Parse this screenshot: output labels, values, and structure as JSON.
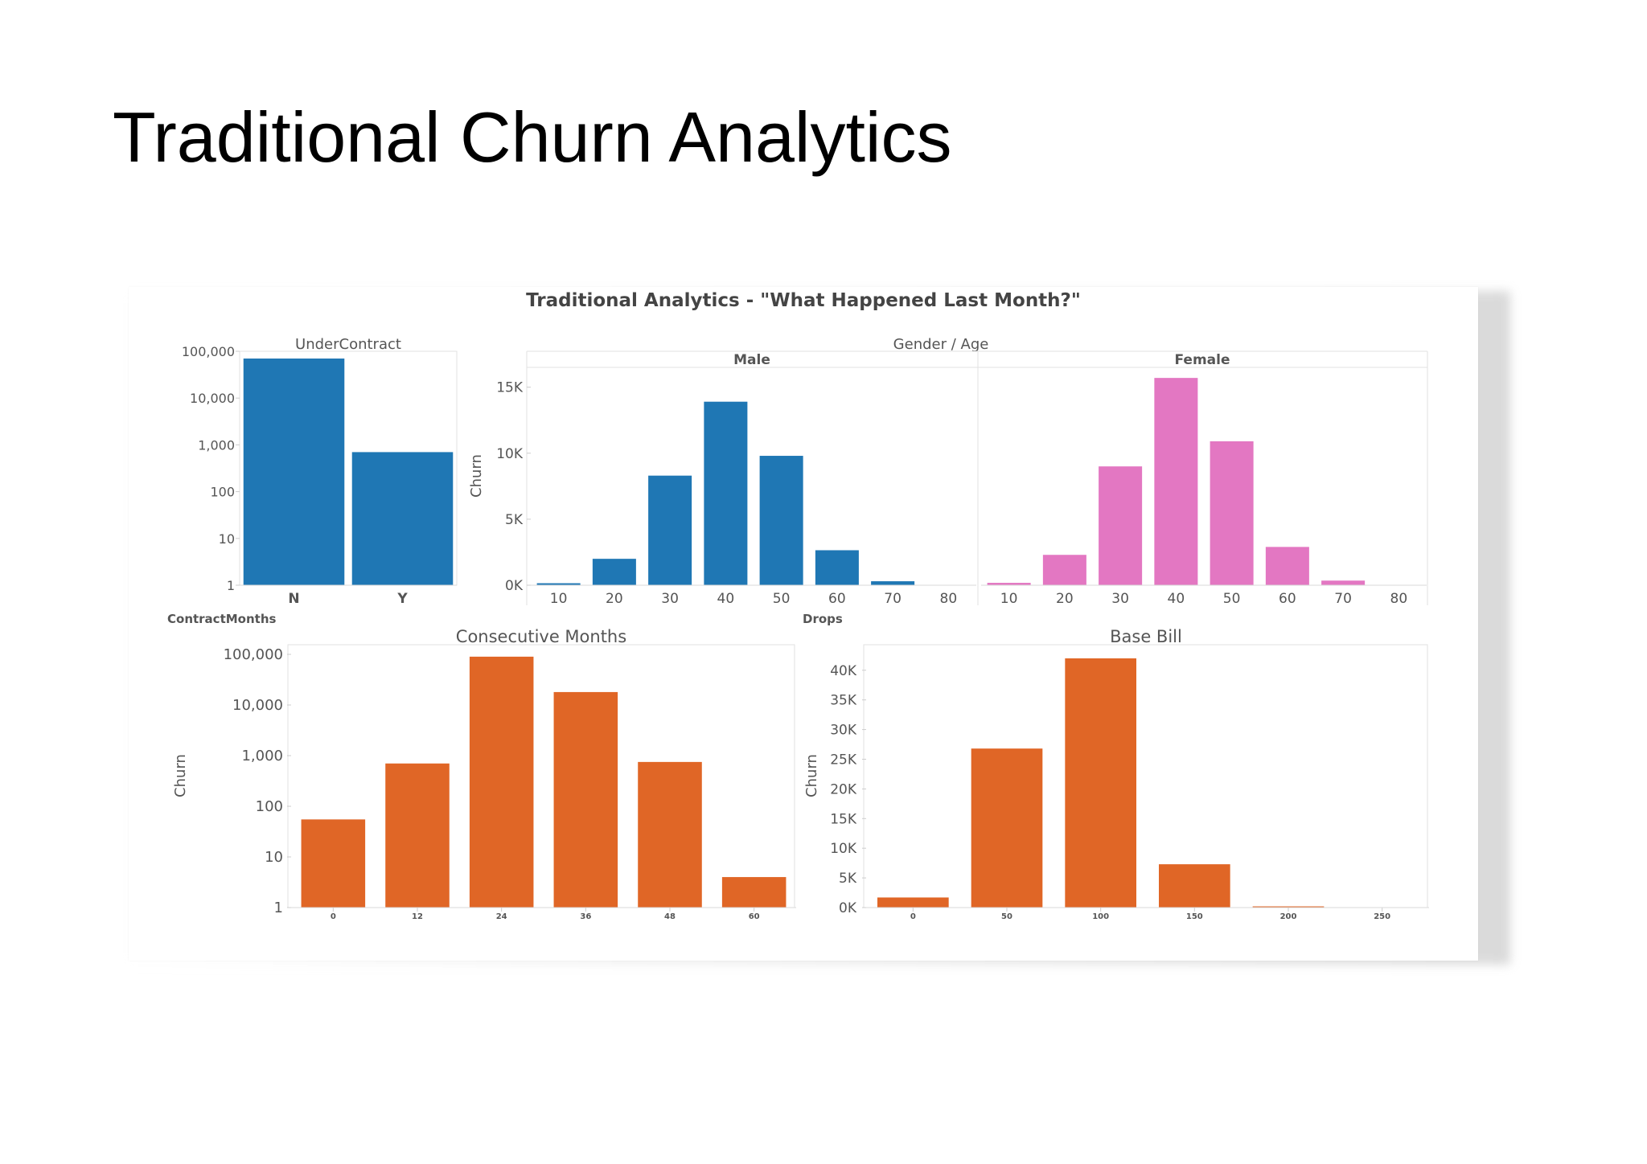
{
  "slide": {
    "title": "Traditional Churn Analytics"
  },
  "dashboard": {
    "title": "Traditional Analytics - \"What Happened Last Month?\""
  },
  "labels": {
    "gender_age": "Gender  /  Age",
    "contract_months": "ContractMonths",
    "drops": "Drops"
  },
  "colors": {
    "blue": "#1f77b4",
    "pink": "#e377c2",
    "orange": "#e06626"
  },
  "chart_data": [
    {
      "id": "under_contract",
      "type": "bar",
      "title": "UnderContract",
      "scale": "log",
      "ylim": [
        1,
        100000
      ],
      "yticks": [
        "1",
        "10",
        "100",
        "1,000",
        "10,000",
        "100,000"
      ],
      "categories": [
        "N",
        "Y"
      ],
      "values": [
        70000,
        700
      ],
      "color": "blue"
    },
    {
      "id": "gender_age_male",
      "type": "bar",
      "title": "Male",
      "ylabel": "Churn",
      "ylim": [
        0,
        16500
      ],
      "yticks": [
        "0K",
        "5K",
        "10K",
        "15K"
      ],
      "categories": [
        "10",
        "20",
        "30",
        "40",
        "50",
        "60",
        "70",
        "80"
      ],
      "values": [
        150,
        2000,
        8300,
        13900,
        9800,
        2650,
        300,
        0
      ],
      "color": "blue"
    },
    {
      "id": "gender_age_female",
      "type": "bar",
      "title": "Female",
      "ylim": [
        0,
        16500
      ],
      "categories": [
        "10",
        "20",
        "30",
        "40",
        "50",
        "60",
        "70",
        "80"
      ],
      "values": [
        180,
        2300,
        9000,
        15700,
        10900,
        2900,
        350,
        0
      ],
      "color": "pink"
    },
    {
      "id": "consecutive_months",
      "type": "bar",
      "title": "Consecutive Months",
      "ylabel": "Churn",
      "scale": "log",
      "ylim": [
        1,
        100000
      ],
      "yticks": [
        "1",
        "10",
        "100",
        "1,000",
        "10,000",
        "100,000"
      ],
      "categories": [
        "0",
        "12",
        "24",
        "36",
        "48",
        "60"
      ],
      "values": [
        55,
        700,
        90000,
        18000,
        750,
        4
      ],
      "color": "orange"
    },
    {
      "id": "base_bill",
      "type": "bar",
      "title": "Base Bill",
      "ylabel": "Churn",
      "ylim": [
        0,
        42000
      ],
      "yticks": [
        "0K",
        "5K",
        "10K",
        "15K",
        "20K",
        "25K",
        "30K",
        "35K",
        "40K"
      ],
      "categories": [
        "0",
        "50",
        "100",
        "150",
        "200",
        "250"
      ],
      "values": [
        1700,
        26800,
        42000,
        7300,
        200,
        0
      ],
      "color": "orange"
    }
  ]
}
